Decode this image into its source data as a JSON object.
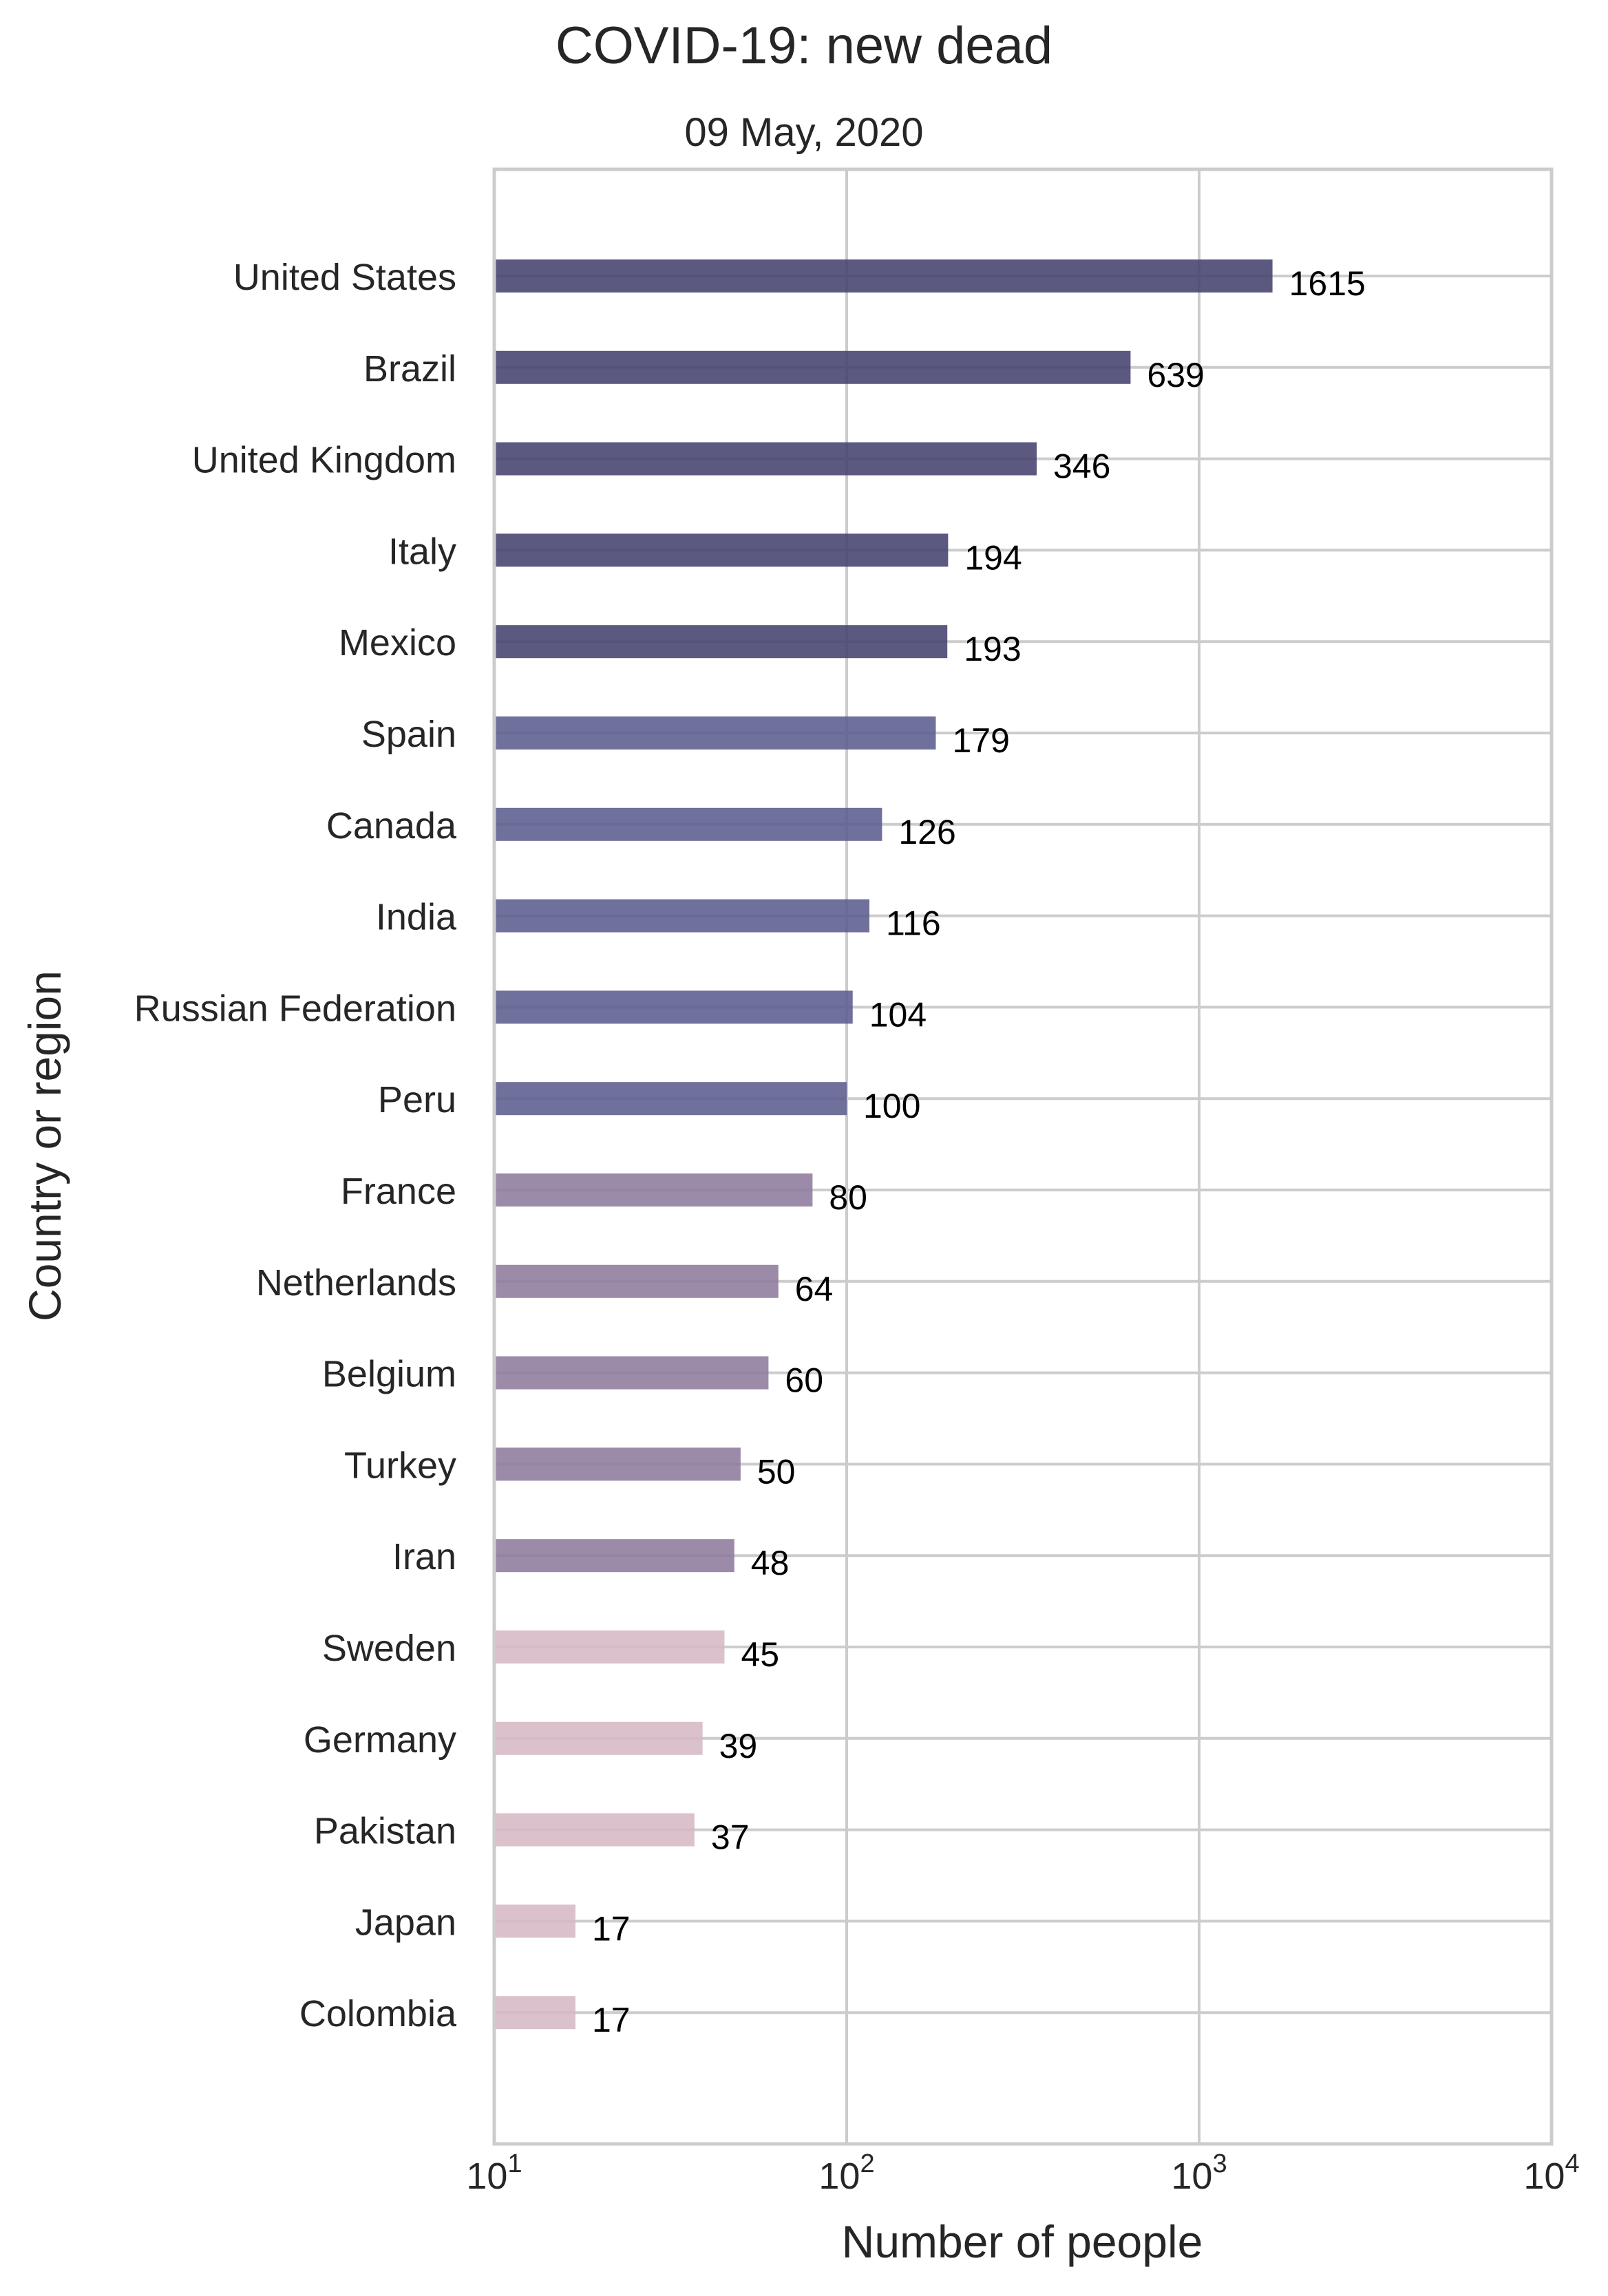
{
  "chart_data": {
    "type": "bar",
    "orientation": "horizontal",
    "title": "COVID-19:  new dead",
    "subtitle": "09 May, 2020",
    "xlabel": "Number of people",
    "ylabel": "Country or region",
    "xscale": "log",
    "xlim": [
      10,
      10000
    ],
    "x_ticks": [
      {
        "value": 10,
        "base": "10",
        "exp": "1"
      },
      {
        "value": 100,
        "base": "10",
        "exp": "2"
      },
      {
        "value": 1000,
        "base": "10",
        "exp": "3"
      },
      {
        "value": 10000,
        "base": "10",
        "exp": "4"
      }
    ],
    "grid": true,
    "categories": [
      "United States",
      "Brazil",
      "United Kingdom",
      "Italy",
      "Mexico",
      "Spain",
      "Canada",
      "India",
      "Russian Federation",
      "Peru",
      "France",
      "Netherlands",
      "Belgium",
      "Turkey",
      "Iran",
      "Sweden",
      "Germany",
      "Pakistan",
      "Japan",
      "Colombia"
    ],
    "values": [
      1615,
      639,
      346,
      194,
      193,
      179,
      126,
      116,
      104,
      100,
      80,
      64,
      60,
      50,
      48,
      45,
      39,
      37,
      17,
      17
    ],
    "bar_colors": [
      "#46426e",
      "#46426e",
      "#46426e",
      "#46426e",
      "#46426e",
      "#5b5c8e",
      "#5b5c8e",
      "#5b5c8e",
      "#5b5c8e",
      "#5b5c8e",
      "#8d7a9c",
      "#8d7a9c",
      "#8d7a9c",
      "#8d7a9c",
      "#8d7a9c",
      "#d6b8c4",
      "#d6b8c4",
      "#d6b8c4",
      "#d6b8c4",
      "#d6b8c4"
    ]
  }
}
